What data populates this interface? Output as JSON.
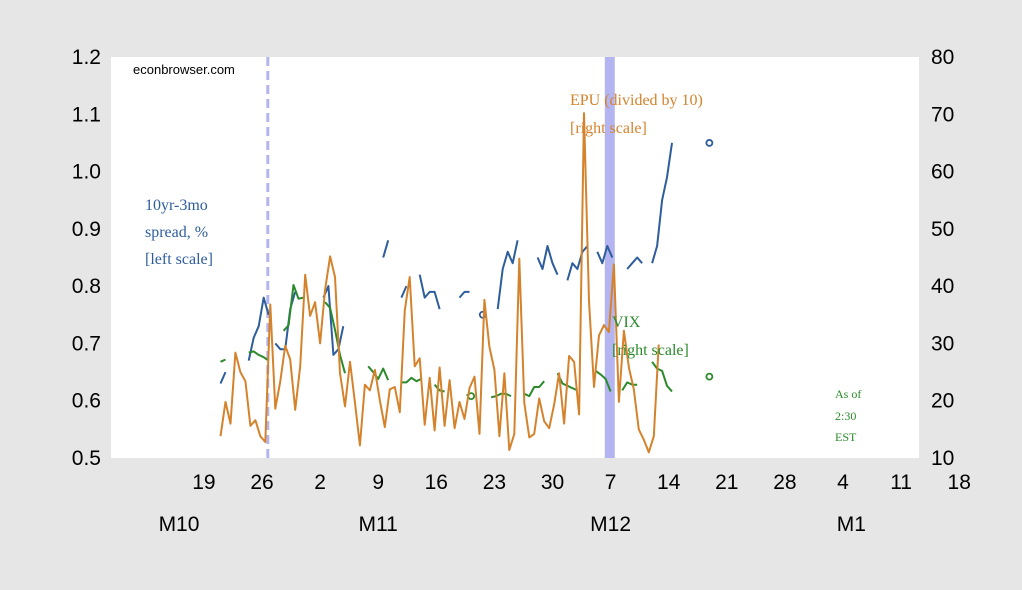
{
  "chart_data": {
    "type": "line",
    "watermark": "econbrowser.com",
    "x_tick_labels": [
      "19",
      "26",
      "2",
      "9",
      "16",
      "23",
      "30",
      "7",
      "14",
      "21",
      "28",
      "4",
      "11",
      "18"
    ],
    "month_labels": [
      "M10",
      "M11",
      "M12",
      "M1"
    ],
    "left_axis": {
      "ticks": [
        "0.5",
        "0.6",
        "0.7",
        "0.8",
        "0.9",
        "1.0",
        "1.1",
        "1.2"
      ],
      "ylim": [
        0.5,
        1.2
      ]
    },
    "right_axis": {
      "ticks": [
        "10",
        "20",
        "30",
        "40",
        "50",
        "60",
        "70",
        "80"
      ],
      "ylim": [
        10,
        80
      ]
    },
    "x_range_days": [
      -5,
      48
    ],
    "annotations": {
      "spread": [
        "10yr-3mo",
        "spread, %",
        "[left scale]"
      ],
      "epu": [
        "EPU (divided by 10)",
        "[right scale]"
      ],
      "vix": [
        "VIX",
        "[right scale]"
      ],
      "asof": [
        "As of",
        "2:30",
        "EST"
      ]
    },
    "vertical_markers": [
      {
        "day": 0.7,
        "style": "dashed",
        "color": "#b4b4f0"
      },
      {
        "day": 41.9,
        "style": "band",
        "width_days": 0.25,
        "color": "#b4b4f0"
      }
    ],
    "colors": {
      "spread": "#2e5d9c",
      "epu": "#d4832c",
      "vix": "#2b8a2b"
    },
    "series": [
      {
        "name": "10yr-3mo spread, %",
        "axis": "left",
        "segments": [
          [
            [
              -5.0,
              0.63
            ],
            [
              -4.4,
              0.65
            ]
          ],
          [
            [
              -1.6,
              0.67
            ],
            [
              -1.0,
              0.71
            ],
            [
              -0.4,
              0.73
            ],
            [
              0.2,
              0.78
            ],
            [
              0.8,
              0.75
            ]
          ],
          [
            [
              1.6,
              0.7
            ],
            [
              2.2,
              0.69
            ],
            [
              2.8,
              0.69
            ],
            [
              3.4,
              0.76
            ],
            [
              4.0,
              0.79
            ]
          ],
          [
            [
              7.4,
              0.78
            ],
            [
              8.0,
              0.8
            ],
            [
              8.6,
              0.68
            ],
            [
              9.2,
              0.69
            ],
            [
              9.8,
              0.73
            ]
          ],
          [
            [
              14.6,
              0.85
            ],
            [
              15.2,
              0.88
            ]
          ],
          [
            [
              16.8,
              0.78
            ],
            [
              17.4,
              0.8
            ]
          ],
          [
            [
              19.0,
              0.82
            ],
            [
              19.6,
              0.78
            ],
            [
              20.2,
              0.79
            ],
            [
              20.8,
              0.79
            ],
            [
              21.4,
              0.76
            ]
          ],
          [
            [
              23.8,
              0.78
            ],
            [
              24.4,
              0.79
            ],
            [
              25.0,
              0.79
            ]
          ],
          [
            [
              28.4,
              0.76
            ],
            [
              29.0,
              0.83
            ],
            [
              29.6,
              0.86
            ],
            [
              30.2,
              0.84
            ],
            [
              30.8,
              0.88
            ]
          ],
          [
            [
              33.2,
              0.85
            ],
            [
              33.8,
              0.83
            ],
            [
              34.4,
              0.87
            ],
            [
              35.0,
              0.84
            ],
            [
              35.6,
              0.82
            ]
          ],
          [
            [
              36.8,
              0.81
            ],
            [
              37.4,
              0.84
            ],
            [
              38.0,
              0.83
            ],
            [
              38.6,
              0.86
            ],
            [
              39.2,
              0.87
            ]
          ],
          [
            [
              40.4,
              0.86
            ],
            [
              41.0,
              0.84
            ],
            [
              41.6,
              0.87
            ],
            [
              42.2,
              0.85
            ]
          ],
          [
            [
              44.0,
              0.83
            ],
            [
              44.6,
              0.84
            ],
            [
              45.2,
              0.85
            ],
            [
              45.8,
              0.84
            ]
          ],
          [
            [
              47.0,
              0.84
            ],
            [
              47.6,
              0.87
            ],
            [
              48.2,
              0.95
            ],
            [
              48.8,
              0.99
            ],
            [
              49.4,
              1.05
            ]
          ]
        ],
        "markers": [
          [
            26.6,
            0.75
          ],
          [
            53.9,
            1.05
          ]
        ]
      },
      {
        "name": "VIX",
        "axis": "right",
        "segments": [
          [
            [
              -5.0,
              26.8
            ],
            [
              -4.4,
              27.2
            ]
          ],
          [
            [
              -1.6,
              28.4
            ],
            [
              -1.0,
              28.6
            ],
            [
              -0.4,
              28.0
            ],
            [
              0.2,
              27.6
            ],
            [
              0.8,
              27.0
            ]
          ],
          [
            [
              2.6,
              32.2
            ],
            [
              3.2,
              33.2
            ],
            [
              3.8,
              40.2
            ],
            [
              4.4,
              37.8
            ],
            [
              5.0,
              38.0
            ]
          ],
          [
            [
              7.6,
              37.2
            ],
            [
              8.2,
              36.2
            ],
            [
              8.8,
              32.4
            ],
            [
              9.4,
              28.0
            ],
            [
              10.0,
              24.8
            ]
          ],
          [
            [
              12.8,
              26.0
            ],
            [
              13.4,
              25.0
            ],
            [
              14.0,
              23.8
            ],
            [
              14.6,
              25.6
            ],
            [
              15.2,
              23.6
            ]
          ],
          [
            [
              16.8,
              23.2
            ],
            [
              17.4,
              23.2
            ],
            [
              18.0,
              24.0
            ],
            [
              18.6,
              23.4
            ],
            [
              19.2,
              23.8
            ]
          ],
          [
            [
              20.8,
              22.8
            ],
            [
              21.4,
              21.8
            ],
            [
              22.0,
              21.6
            ]
          ],
          [
            [
              25.0,
              21.0
            ]
          ],
          [
            [
              27.6,
              20.6
            ],
            [
              28.2,
              20.8
            ],
            [
              28.8,
              21.2
            ],
            [
              29.4,
              21.2
            ],
            [
              30.0,
              20.8
            ]
          ],
          [
            [
              31.6,
              21.2
            ],
            [
              32.2,
              20.8
            ],
            [
              32.8,
              22.4
            ],
            [
              33.4,
              22.4
            ],
            [
              34.0,
              23.4
            ]
          ],
          [
            [
              35.6,
              24.8
            ],
            [
              36.2,
              23.0
            ],
            [
              36.8,
              22.6
            ],
            [
              37.4,
              22.2
            ],
            [
              38.0,
              21.8
            ]
          ],
          [
            [
              40.2,
              25.2
            ],
            [
              40.8,
              24.6
            ],
            [
              41.4,
              23.8
            ],
            [
              42.0,
              21.6
            ]
          ],
          [
            [
              43.4,
              21.8
            ],
            [
              44.0,
              23.2
            ],
            [
              44.6,
              22.8
            ],
            [
              45.2,
              22.8
            ]
          ],
          [
            [
              47.0,
              26.8
            ],
            [
              47.6,
              25.6
            ],
            [
              48.2,
              25.2
            ],
            [
              48.8,
              22.6
            ],
            [
              49.4,
              21.6
            ]
          ]
        ],
        "markers": [
          [
            25.2,
            20.8
          ],
          [
            53.9,
            24.2
          ]
        ]
      },
      {
        "name": "EPU (divided by 10)",
        "axis": "right",
        "line": [
          [
            -5.0,
            13.8
          ],
          [
            -4.4,
            19.8
          ],
          [
            -3.8,
            16.0
          ],
          [
            -3.2,
            28.4
          ],
          [
            -2.6,
            25.0
          ],
          [
            -2.0,
            23.4
          ],
          [
            -1.4,
            15.6
          ],
          [
            -0.8,
            16.6
          ],
          [
            -0.2,
            13.8
          ],
          [
            0.4,
            12.8
          ],
          [
            1.0,
            36.8
          ],
          [
            1.6,
            18.6
          ],
          [
            2.2,
            23.4
          ],
          [
            2.8,
            29.6
          ],
          [
            3.4,
            27.2
          ],
          [
            4.0,
            18.4
          ],
          [
            4.6,
            26.0
          ],
          [
            5.2,
            42.0
          ],
          [
            5.8,
            34.8
          ],
          [
            6.4,
            37.2
          ],
          [
            7.0,
            30.0
          ],
          [
            7.6,
            39.4
          ],
          [
            8.2,
            45.2
          ],
          [
            8.8,
            41.6
          ],
          [
            9.4,
            24.8
          ],
          [
            10.0,
            19.0
          ],
          [
            10.6,
            26.8
          ],
          [
            11.2,
            19.6
          ],
          [
            11.8,
            12.2
          ],
          [
            12.4,
            22.8
          ],
          [
            13.0,
            21.8
          ],
          [
            13.6,
            25.4
          ],
          [
            14.2,
            20.0
          ],
          [
            14.8,
            15.4
          ],
          [
            15.4,
            22.0
          ],
          [
            16.0,
            22.4
          ],
          [
            16.6,
            18.0
          ],
          [
            17.2,
            35.8
          ],
          [
            17.8,
            41.6
          ],
          [
            18.4,
            26.0
          ],
          [
            19.0,
            27.4
          ],
          [
            19.6,
            15.8
          ],
          [
            20.2,
            24.0
          ],
          [
            20.8,
            14.8
          ],
          [
            21.4,
            25.8
          ],
          [
            22.0,
            15.6
          ],
          [
            22.6,
            23.6
          ],
          [
            23.2,
            15.2
          ],
          [
            23.8,
            19.8
          ],
          [
            24.4,
            16.8
          ],
          [
            25.0,
            22.2
          ],
          [
            25.6,
            24.2
          ],
          [
            26.2,
            14.2
          ],
          [
            26.8,
            37.6
          ],
          [
            27.4,
            29.4
          ],
          [
            28.0,
            25.4
          ],
          [
            28.6,
            13.8
          ],
          [
            29.2,
            24.8
          ],
          [
            29.8,
            11.4
          ],
          [
            30.4,
            14.2
          ],
          [
            31.0,
            44.8
          ],
          [
            31.6,
            19.6
          ],
          [
            32.2,
            13.6
          ],
          [
            32.8,
            14.2
          ],
          [
            33.4,
            20.4
          ],
          [
            34.0,
            16.4
          ],
          [
            34.6,
            15.2
          ],
          [
            35.2,
            19.4
          ],
          [
            35.8,
            24.8
          ],
          [
            36.4,
            16.0
          ],
          [
            37.0,
            27.8
          ],
          [
            37.6,
            26.8
          ],
          [
            38.2,
            17.6
          ],
          [
            38.8,
            70.2
          ],
          [
            39.4,
            37.4
          ],
          [
            40.0,
            22.4
          ],
          [
            40.6,
            31.4
          ],
          [
            41.2,
            33.2
          ],
          [
            41.8,
            32.0
          ],
          [
            42.4,
            43.8
          ],
          [
            43.0,
            19.8
          ],
          [
            43.6,
            32.2
          ],
          [
            44.2,
            25.8
          ],
          [
            44.8,
            22.0
          ],
          [
            45.4,
            15.0
          ],
          [
            46.0,
            13.2
          ],
          [
            46.6,
            11.0
          ],
          [
            47.2,
            13.8
          ],
          [
            47.8,
            29.8
          ]
        ]
      }
    ]
  }
}
